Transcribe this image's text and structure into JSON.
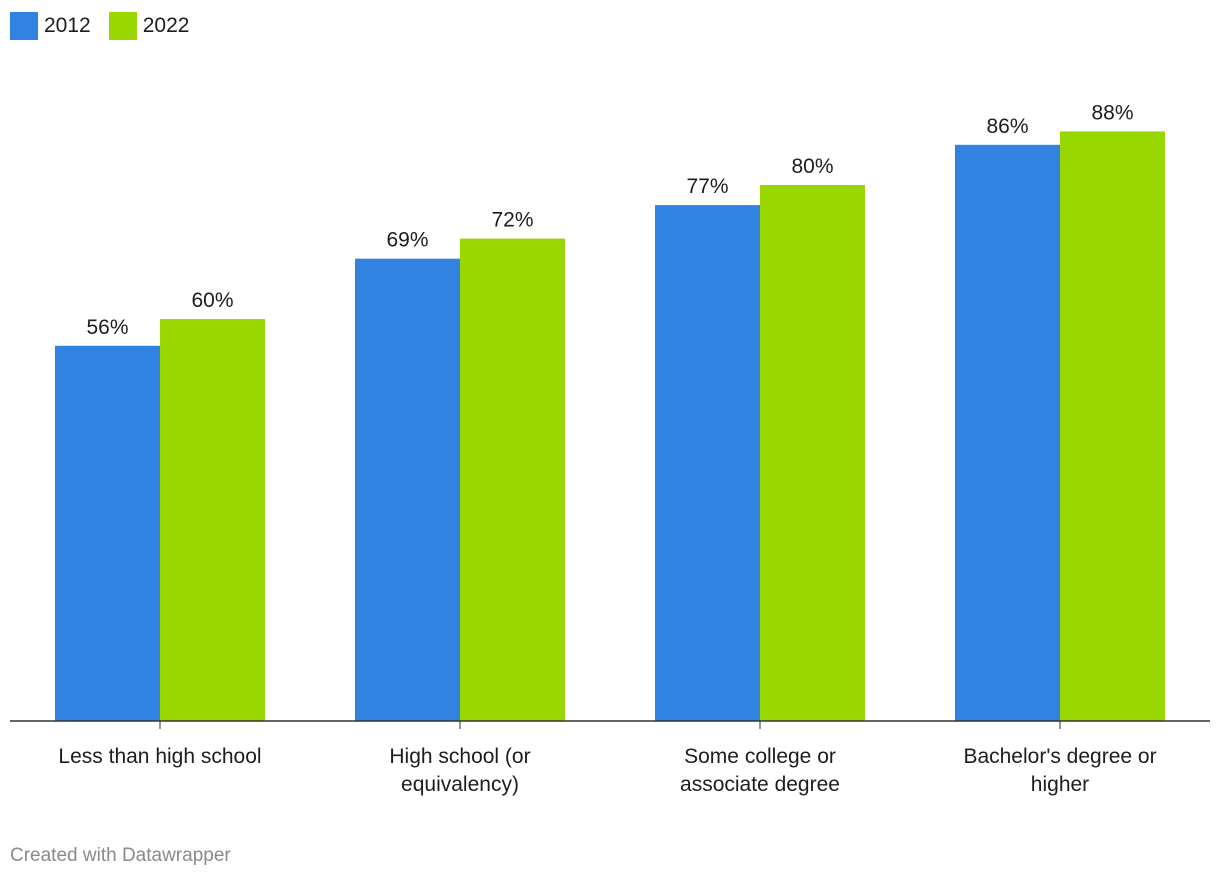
{
  "chart_data": {
    "type": "bar",
    "categories": [
      [
        "Less than high school"
      ],
      [
        "High school (or",
        "equivalency)"
      ],
      [
        "Some college or",
        "associate degree"
      ],
      [
        "Bachelor's degree or",
        "higher"
      ]
    ],
    "series": [
      {
        "name": "2012",
        "color": "#3182e1",
        "values": [
          56,
          69,
          77,
          86
        ]
      },
      {
        "name": "2022",
        "color": "#98d700",
        "values": [
          60,
          72,
          80,
          88
        ]
      }
    ],
    "value_suffix": "%",
    "ylim": [
      0,
      100
    ],
    "legend_position": "top-left",
    "grid": false
  },
  "footer": "Created with Datawrapper"
}
